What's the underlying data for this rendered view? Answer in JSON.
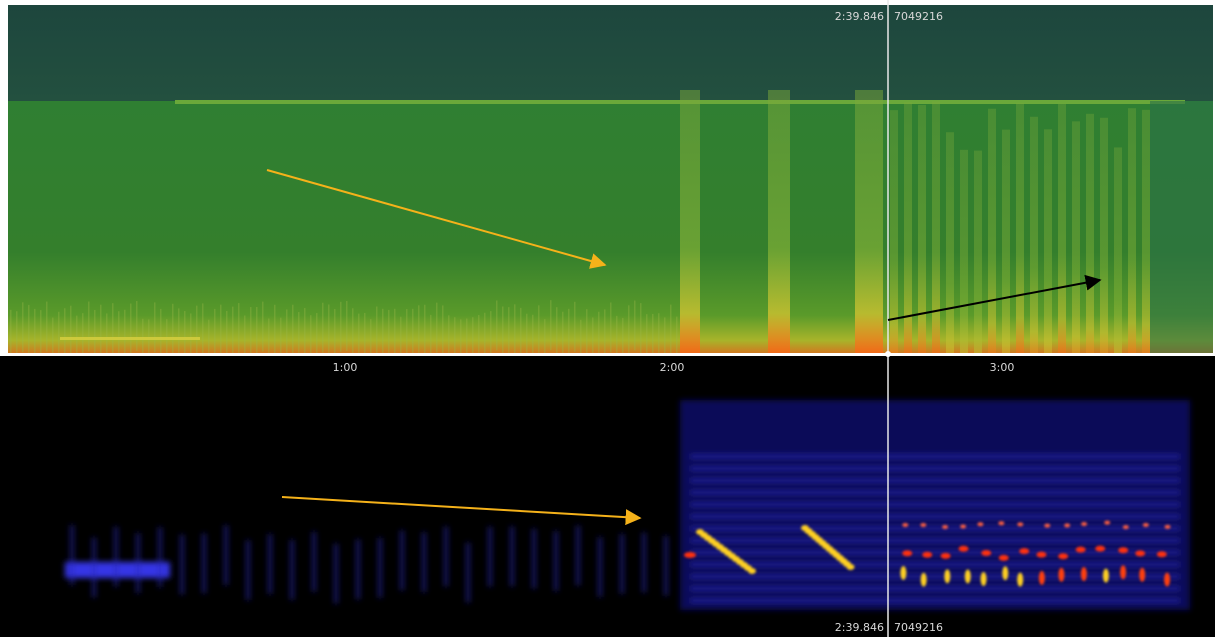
{
  "cursor": {
    "top": {
      "time": "2:39.846",
      "sample": "7049216"
    },
    "bottom": {
      "time": "2:39.846",
      "sample": "7049216"
    }
  },
  "timeline": {
    "labels": [
      "1:00",
      "2:00",
      "3:00"
    ]
  }
}
